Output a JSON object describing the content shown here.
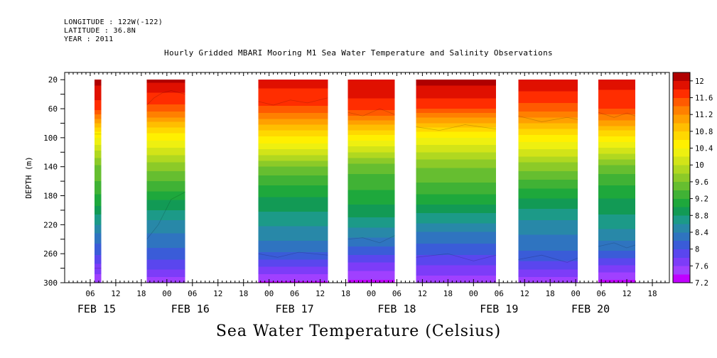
{
  "header": {
    "longitude": "LONGITUDE : 122W(-122)",
    "latitude": "LATITUDE : 36.8N",
    "year": "YEAR : 2011"
  },
  "chart_data": {
    "type": "heatmap",
    "title": "Hourly Gridded MBARI Mooring M1 Sea Water Temperature and Salinity Observations",
    "ylabel": "DEPTH (m)",
    "footer_label": "Sea Water Temperature (Celsius)",
    "x_unit": "hours since FEB 15 00:00",
    "xlim": [
      0,
      142
    ],
    "ylim": [
      300,
      10
    ],
    "y_ticks": [
      20,
      60,
      100,
      140,
      180,
      220,
      260,
      300
    ],
    "x_hour_ticks": [
      {
        "t": 6,
        "label": "06"
      },
      {
        "t": 12,
        "label": "12"
      },
      {
        "t": 18,
        "label": "18"
      },
      {
        "t": 24,
        "label": "00"
      },
      {
        "t": 30,
        "label": "06"
      },
      {
        "t": 36,
        "label": "12"
      },
      {
        "t": 42,
        "label": "18"
      },
      {
        "t": 48,
        "label": "00"
      },
      {
        "t": 54,
        "label": "06"
      },
      {
        "t": 60,
        "label": "12"
      },
      {
        "t": 66,
        "label": "18"
      },
      {
        "t": 72,
        "label": "00"
      },
      {
        "t": 78,
        "label": "06"
      },
      {
        "t": 84,
        "label": "12"
      },
      {
        "t": 90,
        "label": "18"
      },
      {
        "t": 96,
        "label": "00"
      },
      {
        "t": 102,
        "label": "06"
      },
      {
        "t": 108,
        "label": "12"
      },
      {
        "t": 114,
        "label": "18"
      },
      {
        "t": 120,
        "label": "00"
      },
      {
        "t": 126,
        "label": "06"
      },
      {
        "t": 132,
        "label": "12"
      },
      {
        "t": 138,
        "label": "18"
      }
    ],
    "x_day_labels": [
      {
        "t": 7.5,
        "label": "FEB 15"
      },
      {
        "t": 29.5,
        "label": "FEB 16"
      },
      {
        "t": 54,
        "label": "FEB 17"
      },
      {
        "t": 78,
        "label": "FEB 18"
      },
      {
        "t": 102,
        "label": "FEB 19"
      },
      {
        "t": 123.5,
        "label": "FEB 20"
      }
    ],
    "colorbar_levels": [
      7.2,
      7.4,
      7.6,
      7.8,
      8.0,
      8.2,
      8.4,
      8.6,
      8.8,
      9.0,
      9.2,
      9.4,
      9.6,
      9.8,
      10.0,
      10.2,
      10.4,
      10.6,
      10.8,
      11.0,
      11.2,
      11.4,
      11.6,
      11.8,
      12.0,
      12.2
    ],
    "colorbar_labels": [
      "12",
      "11.6",
      "11.2",
      "10.8",
      "10.4",
      "10",
      "9.6",
      "9.2",
      "8.8",
      "8.4",
      "8",
      "7.6",
      "7.2"
    ],
    "colorbar_colors": [
      "#c000ff",
      "#a040ff",
      "#7d3cf8",
      "#5a46ee",
      "#3a5cd8",
      "#2f74c0",
      "#2888a8",
      "#1c9a88",
      "#129a55",
      "#1ea83c",
      "#40b235",
      "#66be30",
      "#8cca28",
      "#b0d820",
      "#d2e418",
      "#eef010",
      "#fff000",
      "#ffd800",
      "#ffbe00",
      "#ffa000",
      "#ff8000",
      "#ff5a00",
      "#ff2d00",
      "#e01000",
      "#b00000"
    ],
    "segments": [
      {
        "t0": 7.0,
        "t1": 8.6,
        "iso": [
          [
            [
              7,
              95
            ],
            [
              8.6,
              95
            ]
          ],
          [
            [
              7,
              280
            ],
            [
              8.6,
              280
            ]
          ]
        ]
      },
      {
        "t0": 19.3,
        "t1": 28.3,
        "iso": [
          [
            [
              19.3,
              55
            ],
            [
              21,
              45
            ],
            [
              23,
              38
            ],
            [
              25,
              35
            ],
            [
              28.3,
              40
            ]
          ],
          [
            [
              19.3,
              240
            ],
            [
              22,
              220
            ],
            [
              25,
              185
            ],
            [
              28.3,
              175
            ]
          ]
        ]
      },
      {
        "t0": 45.5,
        "t1": 61.8,
        "iso": [
          [
            [
              45.5,
              50
            ],
            [
              49,
              55
            ],
            [
              53,
              48
            ],
            [
              57,
              52
            ],
            [
              61.8,
              45
            ]
          ],
          [
            [
              45.5,
              260
            ],
            [
              50,
              265
            ],
            [
              55,
              258
            ],
            [
              61.8,
              262
            ]
          ]
        ]
      },
      {
        "t0": 66.5,
        "t1": 77.5,
        "iso": [
          [
            [
              66.5,
              65
            ],
            [
              70,
              70
            ],
            [
              74,
              60
            ],
            [
              77.5,
              68
            ]
          ],
          [
            [
              66.5,
              240
            ],
            [
              70,
              238
            ],
            [
              74,
              245
            ],
            [
              77.5,
              235
            ]
          ]
        ]
      },
      {
        "t0": 82.5,
        "t1": 101.3,
        "iso": [
          [
            [
              82.5,
              85
            ],
            [
              88,
              90
            ],
            [
              94,
              82
            ],
            [
              101.3,
              88
            ]
          ],
          [
            [
              82.5,
              265
            ],
            [
              90,
              260
            ],
            [
              96,
              270
            ],
            [
              101.3,
              262
            ]
          ]
        ]
      },
      {
        "t0": 106.5,
        "t1": 120.5,
        "iso": [
          [
            [
              106.5,
              70
            ],
            [
              112,
              78
            ],
            [
              118,
              72
            ],
            [
              120.5,
              75
            ]
          ],
          [
            [
              106.5,
              268
            ],
            [
              112,
              262
            ],
            [
              118,
              272
            ],
            [
              120.5,
              266
            ]
          ]
        ]
      },
      {
        "t0": 125.3,
        "t1": 134.0,
        "iso": [
          [
            [
              125.3,
              65
            ],
            [
              129,
              72
            ],
            [
              132,
              66
            ],
            [
              134,
              70
            ]
          ],
          [
            [
              125.3,
              250
            ],
            [
              129,
              245
            ],
            [
              132,
              252
            ],
            [
              134,
              248
            ]
          ]
        ]
      }
    ],
    "profile_control": [
      [
        20,
        12.0
      ],
      [
        60,
        11.6
      ],
      [
        95,
        10.6
      ],
      [
        140,
        9.6
      ],
      [
        180,
        9.1
      ],
      [
        220,
        8.6
      ],
      [
        260,
        8.1
      ],
      [
        300,
        7.4
      ]
    ]
  }
}
